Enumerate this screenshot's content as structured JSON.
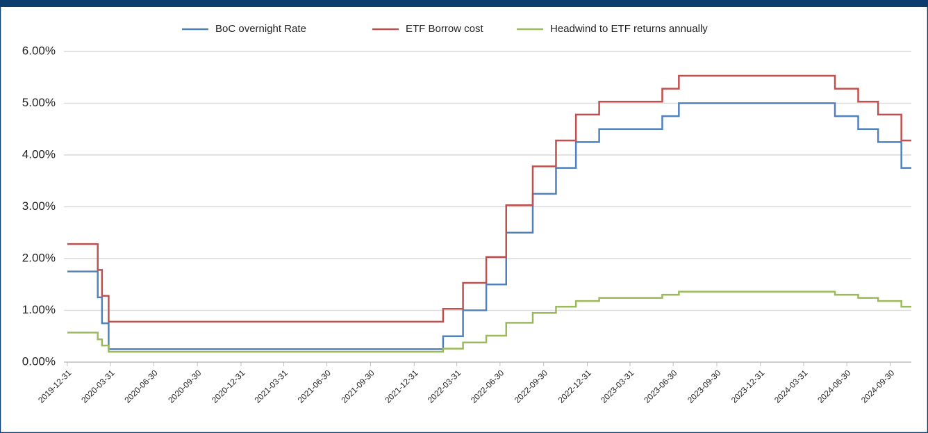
{
  "chart_data": {
    "type": "line",
    "step": true,
    "x": [
      "2019-12-31",
      "2020-03-04",
      "2020-03-13",
      "2020-03-27",
      "2022-03-02",
      "2022-04-13",
      "2022-06-01",
      "2022-07-13",
      "2022-09-07",
      "2022-10-26",
      "2022-12-07",
      "2023-01-25",
      "2023-06-07",
      "2023-07-12",
      "2024-06-05",
      "2024-07-24",
      "2024-09-04",
      "2024-10-23",
      "2024-11-13"
    ],
    "series": [
      {
        "name": "BoC overnight Rate",
        "color": "#4f81bd",
        "values": [
          1.75,
          1.25,
          0.75,
          0.25,
          0.5,
          1.0,
          1.5,
          2.5,
          3.25,
          3.75,
          4.25,
          4.5,
          4.75,
          5.0,
          4.75,
          4.5,
          4.25,
          3.75,
          3.75
        ]
      },
      {
        "name": "ETF Borrow cost",
        "color": "#c0504d",
        "values": [
          2.28,
          1.78,
          1.28,
          0.78,
          1.03,
          1.53,
          2.03,
          3.03,
          3.78,
          4.28,
          4.78,
          5.03,
          5.28,
          5.53,
          5.28,
          5.03,
          4.78,
          4.28,
          4.28
        ]
      },
      {
        "name": "Headwind to ETF returns annually",
        "color": "#9bbb59",
        "values": [
          0.57,
          0.44,
          0.32,
          0.2,
          0.26,
          0.38,
          0.51,
          0.76,
          0.95,
          1.07,
          1.18,
          1.24,
          1.3,
          1.36,
          1.3,
          1.24,
          1.18,
          1.07,
          1.07
        ]
      }
    ],
    "xlim": [
      "2019-12-31",
      "2024-11-13"
    ],
    "xticks": [
      "2019-12-31",
      "2020-03-31",
      "2020-06-30",
      "2020-09-30",
      "2020-12-31",
      "2021-03-31",
      "2021-06-30",
      "2021-09-30",
      "2021-12-31",
      "2022-03-31",
      "2022-06-30",
      "2022-09-30",
      "2022-12-31",
      "2023-03-31",
      "2023-06-30",
      "2023-09-30",
      "2023-12-31",
      "2024-03-31",
      "2024-06-30",
      "2024-09-30"
    ],
    "ylim": [
      0,
      6
    ],
    "yticks": [
      {
        "value": 0,
        "label": "0.00%"
      },
      {
        "value": 1,
        "label": "1.00%"
      },
      {
        "value": 2,
        "label": "2.00%"
      },
      {
        "value": 3,
        "label": "3.00%"
      },
      {
        "value": 4,
        "label": "4.00%"
      },
      {
        "value": 5,
        "label": "5.00%"
      },
      {
        "value": 6,
        "label": "6.00%"
      }
    ],
    "grid": true,
    "legend": "top"
  }
}
